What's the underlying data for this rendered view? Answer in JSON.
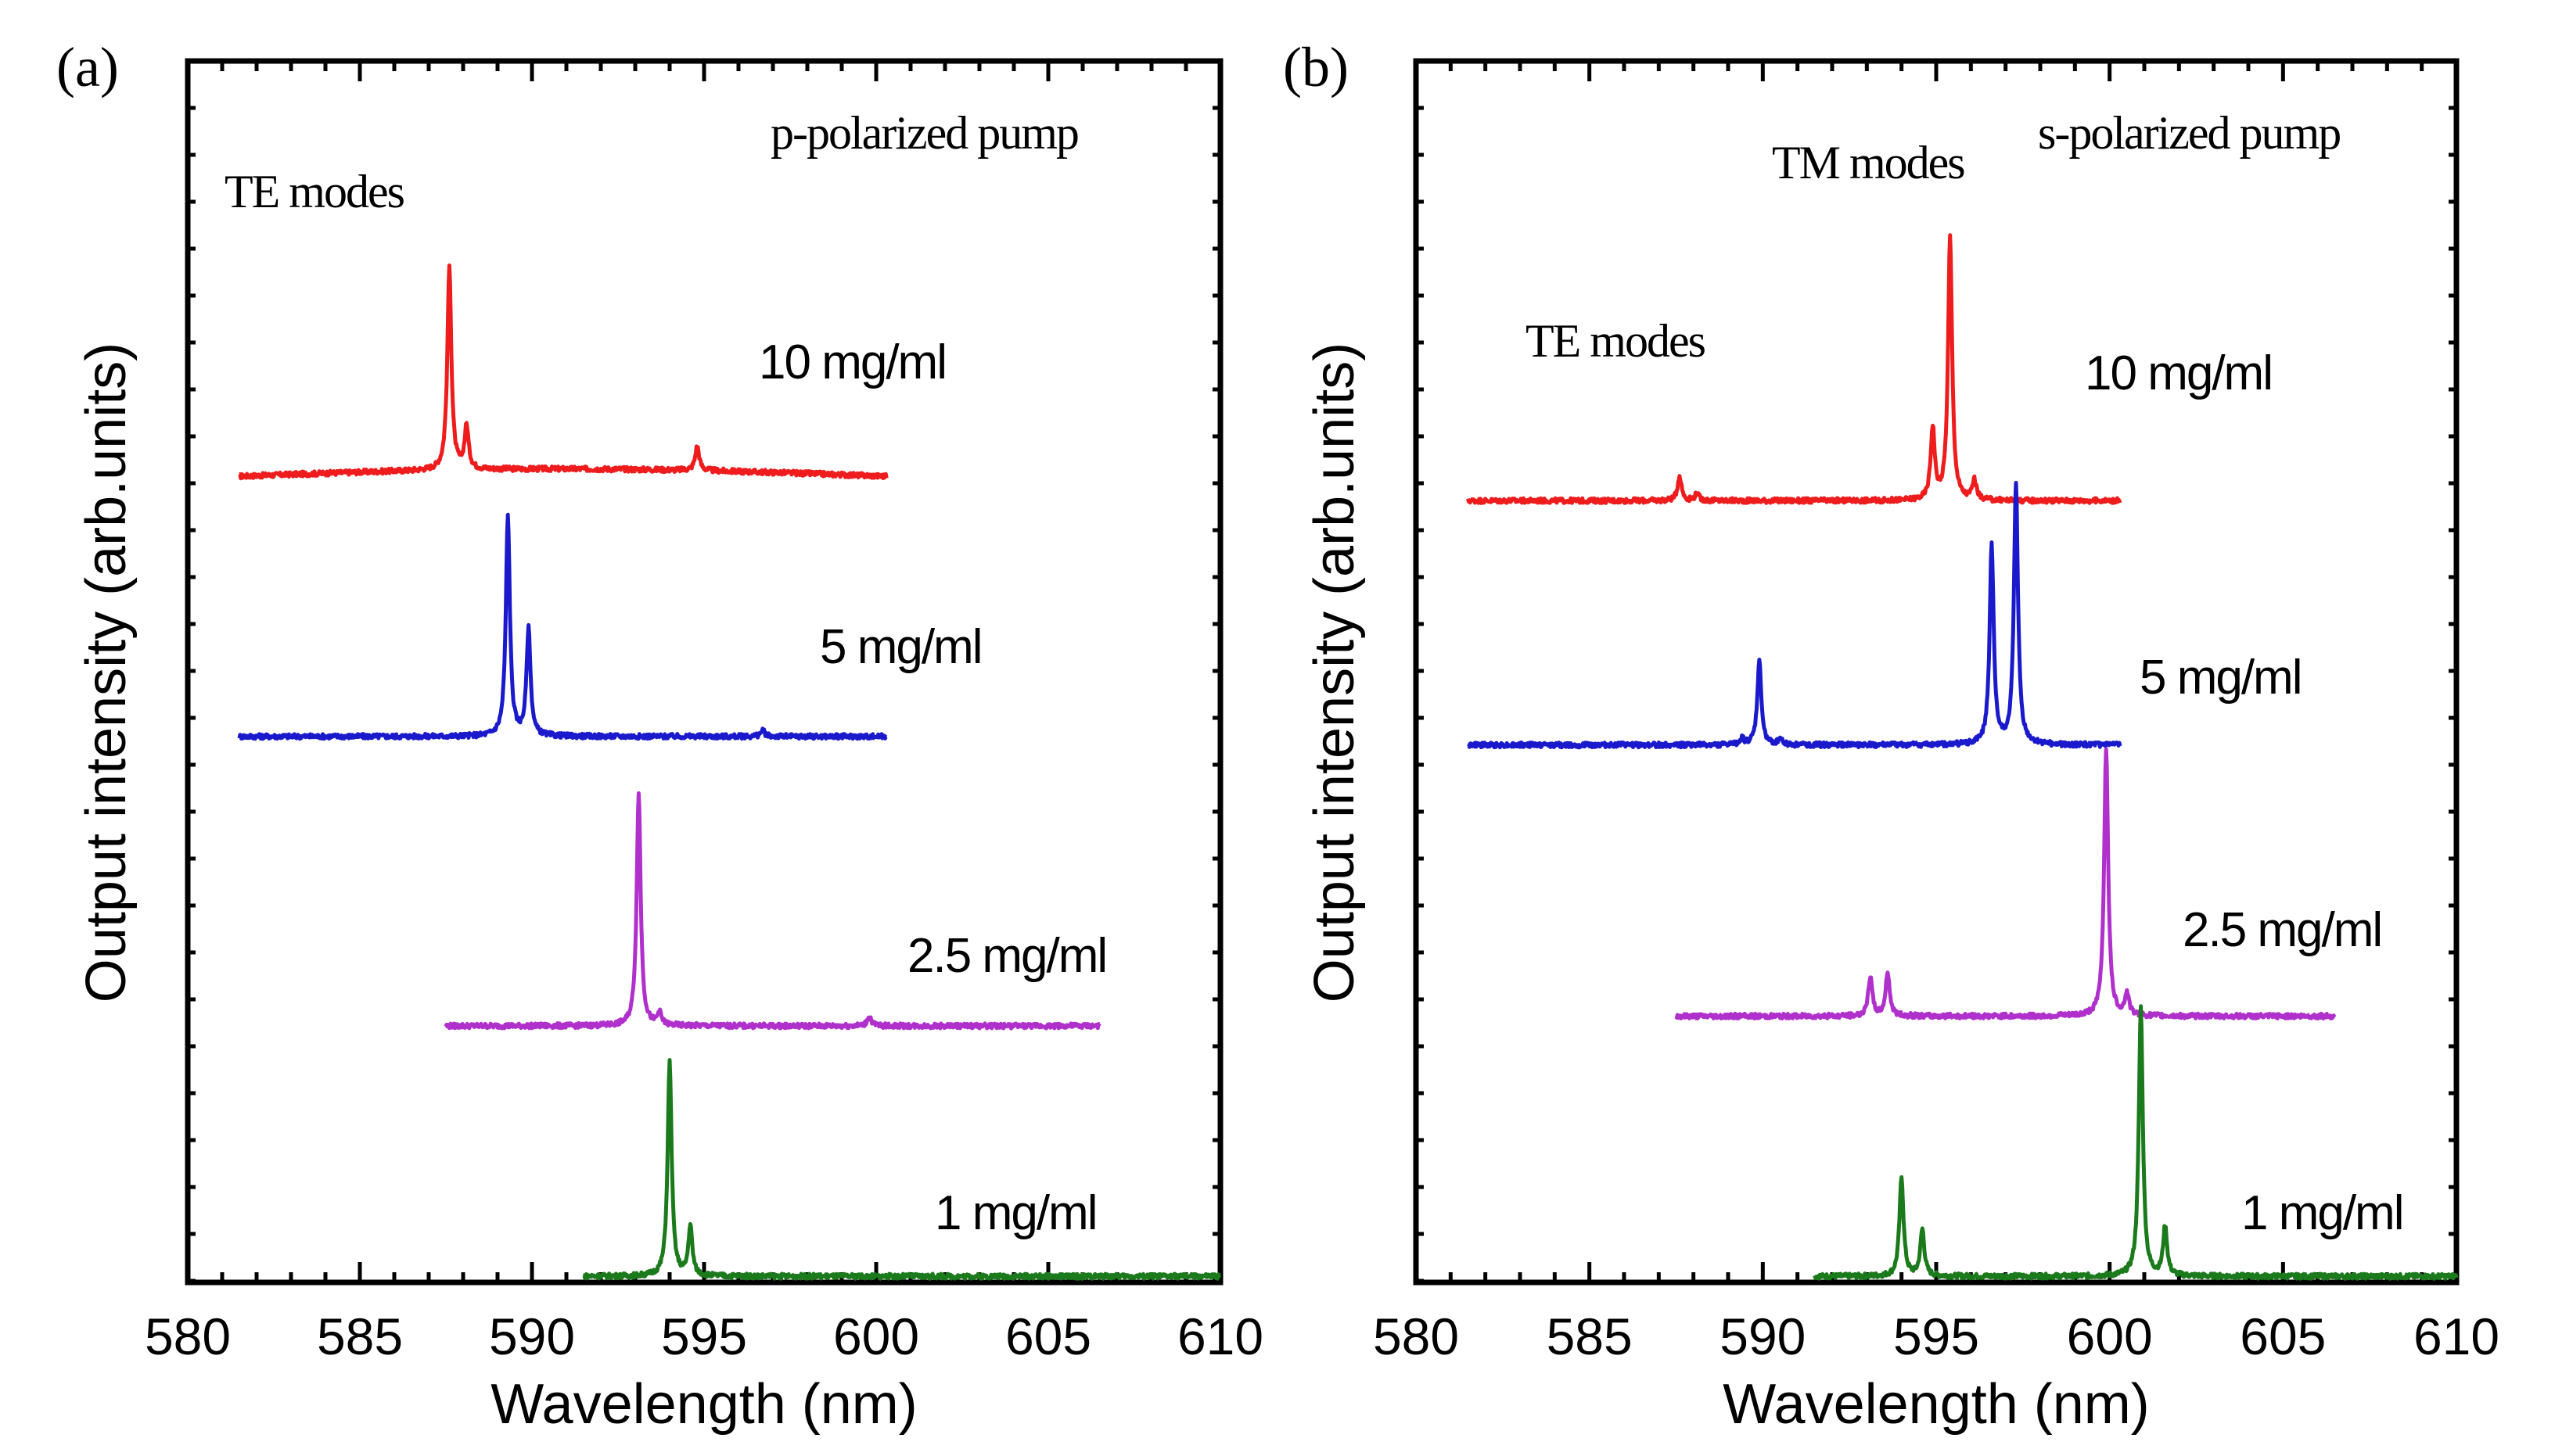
{
  "chart_data": [
    {
      "type": "line",
      "panel_label": "(a)",
      "pump": "p-polarized pump",
      "xlabel": "Wavelength (nm)",
      "ylabel": "Output intensity (arb.units)",
      "xlim": [
        580,
        610
      ],
      "xticks": [
        580,
        585,
        590,
        595,
        600,
        605,
        610
      ],
      "x_tick_labels": [
        "580",
        "585",
        "590",
        "595",
        "600",
        "605",
        "610"
      ],
      "y_ticks": "none (arbitrary units, traces offset vertically)",
      "annotations": [
        {
          "text": "TE modes",
          "near_x": 587.6
        }
      ],
      "series": [
        {
          "name": "10 mg/ml",
          "color": "#ee1c1c",
          "x_range": [
            581.5,
            600.3
          ],
          "offset": 0.66,
          "peaks": [
            {
              "x": 587.6,
              "h": 0.165
            },
            {
              "x": 588.1,
              "h": 0.035
            },
            {
              "x": 594.8,
              "h": 0.02
            }
          ]
        },
        {
          "name": "5 mg/ml",
          "color": "#1a1acc",
          "x_range": [
            581.5,
            600.3
          ],
          "offset": 0.447,
          "peaks": [
            {
              "x": 589.3,
              "h": 0.18
            },
            {
              "x": 589.9,
              "h": 0.087
            },
            {
              "x": 596.7,
              "h": 0.005
            }
          ]
        },
        {
          "name": "2.5 mg/ml",
          "color": "#b030cc",
          "x_range": [
            587.5,
            606.5
          ],
          "offset": 0.21,
          "peaks": [
            {
              "x": 593.1,
              "h": 0.19
            },
            {
              "x": 593.7,
              "h": 0.01
            },
            {
              "x": 599.8,
              "h": 0.008
            }
          ]
        },
        {
          "name": "1 mg/ml",
          "color": "#1b7a1b",
          "x_range": [
            591.5,
            610
          ],
          "offset": 0.005,
          "peaks": [
            {
              "x": 594.0,
              "h": 0.175
            },
            {
              "x": 594.6,
              "h": 0.04
            }
          ]
        }
      ]
    },
    {
      "type": "line",
      "panel_label": "(b)",
      "pump": "s-polarized pump",
      "xlabel": "Wavelength (nm)",
      "ylabel": "Output intensity (arb.units)",
      "xlim": [
        580,
        610
      ],
      "xticks": [
        580,
        585,
        590,
        595,
        600,
        605,
        610
      ],
      "x_tick_labels": [
        "580",
        "585",
        "590",
        "595",
        "600",
        "605",
        "610"
      ],
      "y_ticks": "none (arbitrary units, traces offset vertically)",
      "annotations": [
        {
          "text": "TE modes",
          "near_x": 590
        },
        {
          "text": "TM modes",
          "near_x": 595.4
        }
      ],
      "series": [
        {
          "name": "10 mg/ml",
          "color": "#ee1c1c",
          "x_range": [
            581.5,
            600.3
          ],
          "offset": 0.64,
          "peaks": [
            {
              "x": 587.6,
              "h": 0.02
            },
            {
              "x": 588.1,
              "h": 0.006
            },
            {
              "x": 594.9,
              "h": 0.059
            },
            {
              "x": 595.4,
              "h": 0.215
            },
            {
              "x": 596.1,
              "h": 0.016
            }
          ]
        },
        {
          "name": "5 mg/ml",
          "color": "#1a1acc",
          "x_range": [
            581.5,
            600.3
          ],
          "offset": 0.44,
          "peaks": [
            {
              "x": 589.9,
              "h": 0.068
            },
            {
              "x": 589.4,
              "h": 0.005
            },
            {
              "x": 590.5,
              "h": 0.005
            },
            {
              "x": 596.6,
              "h": 0.162
            },
            {
              "x": 597.3,
              "h": 0.213
            }
          ]
        },
        {
          "name": "2.5 mg/ml",
          "color": "#b030cc",
          "x_range": [
            587.5,
            606.5
          ],
          "offset": 0.218,
          "peaks": [
            {
              "x": 593.1,
              "h": 0.032
            },
            {
              "x": 593.6,
              "h": 0.036
            },
            {
              "x": 599.9,
              "h": 0.22
            },
            {
              "x": 600.5,
              "h": 0.018
            }
          ]
        },
        {
          "name": "1 mg/ml",
          "color": "#1b7a1b",
          "x_range": [
            591.5,
            610
          ],
          "offset": 0.005,
          "peaks": [
            {
              "x": 594.0,
              "h": 0.081
            },
            {
              "x": 594.6,
              "h": 0.038
            },
            {
              "x": 600.9,
              "h": 0.22
            },
            {
              "x": 601.6,
              "h": 0.04
            }
          ]
        }
      ]
    }
  ]
}
